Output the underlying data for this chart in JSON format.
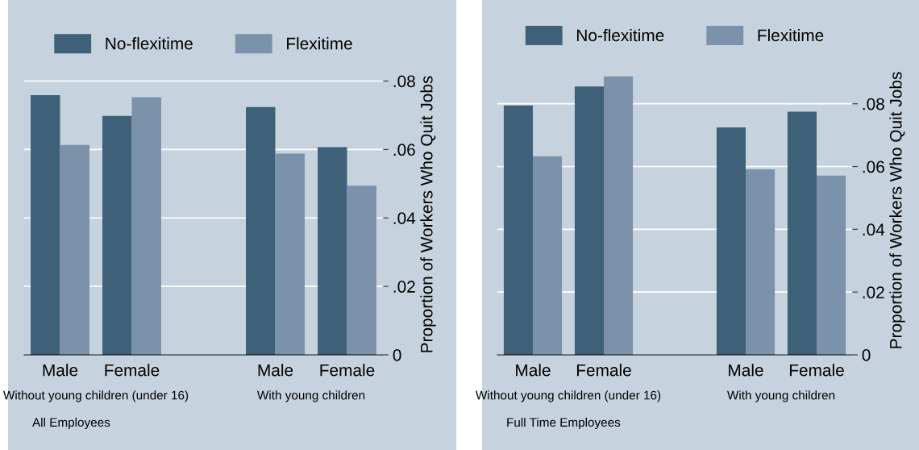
{
  "chart_data": [
    {
      "type": "bar",
      "categories": [
        "Male",
        "Female",
        null,
        "Male",
        "Female"
      ],
      "ylabel": "Proportion of Workers Who Quit Jobs",
      "ylim": [
        0,
        0.082
      ],
      "yticks": [
        0,
        {
          "value": 0.02,
          "label": ".02"
        },
        {
          "value": 0.04,
          "label": ".04"
        },
        {
          "value": 0.06,
          "label": ".06"
        },
        {
          "value": 0.08,
          "label": ".08"
        }
      ],
      "grid": "y",
      "legend": "top",
      "annotations": [
        "Without young children (under 16)",
        "With young children",
        "All Employees"
      ],
      "series": [
        {
          "name": "No-flexitime",
          "color": "#3e6079",
          "values": [
            0.0759,
            0.0698,
            null,
            0.0724,
            0.0607
          ]
        },
        {
          "name": "Flexitime",
          "color": "#7b92aa",
          "values": [
            0.0613,
            0.0753,
            null,
            0.0588,
            0.0494
          ]
        }
      ]
    },
    {
      "type": "bar",
      "categories": [
        "Male",
        "Female",
        null,
        "Male",
        "Female"
      ],
      "ylabel": "Proportion of Workers Who Quit Jobs",
      "ylim": [
        0,
        0.092
      ],
      "yticks": [
        0,
        {
          "value": 0.02,
          "label": ".02"
        },
        {
          "value": 0.04,
          "label": ".04"
        },
        {
          "value": 0.06,
          "label": ".06"
        },
        {
          "value": 0.08,
          "label": ".08"
        }
      ],
      "grid": "y",
      "legend": "top",
      "annotations": [
        "Without young children (under 16)",
        "With young children",
        "Full Time Employees"
      ],
      "series": [
        {
          "name": "No-flexitime",
          "color": "#3e6079",
          "values": [
            0.0795,
            0.0855,
            null,
            0.0725,
            0.0775
          ]
        },
        {
          "name": "Flexitime",
          "color": "#7b92aa",
          "values": [
            0.0633,
            0.0887,
            null,
            0.0591,
            0.0571
          ]
        }
      ]
    }
  ]
}
